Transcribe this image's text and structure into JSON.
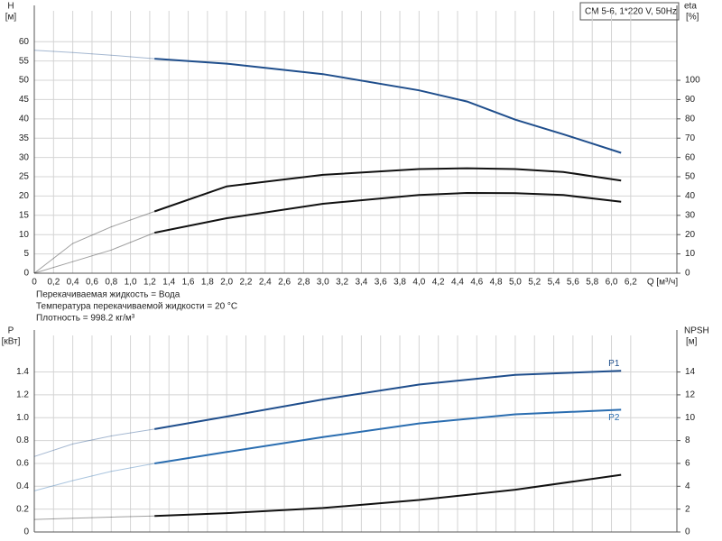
{
  "chart_data": [
    {
      "type": "line",
      "title": "CM 5-6, 1*220 V, 50Hz",
      "ylabel": "H",
      "yunit": "[м]",
      "y2label": "eta",
      "y2unit": "[%]",
      "xlabel": "Q [м³/ч]",
      "notes": [
        "Перекачиваемая жидкость = Вода",
        "Температура перекачиваемой жидкости = 20 °C",
        "Плотность = 998.2 кг/м³"
      ],
      "xlim": [
        0,
        6.68
      ],
      "xticks": [
        0,
        {
          "value": 0.2,
          "label": "0,2"
        },
        {
          "value": 0.4,
          "label": "0,4"
        },
        {
          "value": 0.6,
          "label": "0,6"
        },
        {
          "value": 0.8,
          "label": "0,8"
        },
        {
          "value": 1.0,
          "label": "1,0"
        },
        {
          "value": 1.2,
          "label": "1,2"
        },
        {
          "value": 1.4,
          "label": "1,4"
        },
        {
          "value": 1.6,
          "label": "1,6"
        },
        {
          "value": 1.8,
          "label": "1,8"
        },
        {
          "value": 2.0,
          "label": "2,0"
        },
        {
          "value": 2.2,
          "label": "2,2"
        },
        {
          "value": 2.4,
          "label": "2,4"
        },
        {
          "value": 2.6,
          "label": "2,6"
        },
        {
          "value": 2.8,
          "label": "2,8"
        },
        {
          "value": 3.0,
          "label": "3,0"
        },
        {
          "value": 3.2,
          "label": "3,2"
        },
        {
          "value": 3.4,
          "label": "3,4"
        },
        {
          "value": 3.6,
          "label": "3,6"
        },
        {
          "value": 3.8,
          "label": "3,8"
        },
        {
          "value": 4.0,
          "label": "4,0"
        },
        {
          "value": 4.2,
          "label": "4,2"
        },
        {
          "value": 4.4,
          "label": "4,4"
        },
        {
          "value": 4.6,
          "label": "4,6"
        },
        {
          "value": 4.8,
          "label": "4,8"
        },
        {
          "value": 5.0,
          "label": "5,0"
        },
        {
          "value": 5.2,
          "label": "5,2"
        },
        {
          "value": 5.4,
          "label": "5,4"
        },
        {
          "value": 5.6,
          "label": "5,6"
        },
        {
          "value": 5.8,
          "label": "5,8"
        },
        {
          "value": 6.0,
          "label": "6,0"
        },
        {
          "value": 6.2,
          "label": "6,2"
        }
      ],
      "ylim": [
        0,
        68
      ],
      "yticks": [
        0,
        5,
        10,
        15,
        20,
        25,
        30,
        35,
        40,
        45,
        50,
        55,
        60
      ],
      "y2lim": [
        0,
        136
      ],
      "y2ticks": [
        0,
        10,
        20,
        30,
        40,
        50,
        60,
        70,
        80,
        90,
        100
      ],
      "grid": true,
      "faded_below": 1.25,
      "x": [
        0,
        0.4,
        0.8,
        1.25,
        2,
        3,
        4,
        4.5,
        5,
        5.5,
        6.1
      ],
      "series": [
        {
          "color": "#1f4e8c",
          "values": [
            57.8,
            57.2,
            56.5,
            55.6,
            54.3,
            51.6,
            47.4,
            44.5,
            39.8,
            36,
            31.2
          ]
        },
        {
          "color": "#111111",
          "axis": "y2",
          "values": [
            0,
            15.4,
            24,
            32,
            45,
            51,
            54,
            54.4,
            54,
            52.5,
            48
          ]
        },
        {
          "color": "#111111",
          "axis": "y2",
          "values": [
            0,
            6,
            12,
            21,
            28.5,
            36,
            40.5,
            41.6,
            41.5,
            40.5,
            37
          ]
        }
      ]
    },
    {
      "type": "line",
      "ylabel": "P",
      "yunit": "[кВт]",
      "y2label": "NPSH",
      "y2unit": "[м]",
      "xlim": [
        0,
        6.68
      ],
      "xticks": [
        0,
        0.2,
        0.4,
        0.6,
        0.8,
        1.0,
        1.2,
        1.4,
        1.6,
        1.8,
        2.0,
        2.2,
        2.4,
        2.6,
        2.8,
        3.0,
        3.2,
        3.4,
        3.6,
        3.8,
        4.0,
        4.2,
        4.4,
        4.6,
        4.8,
        5.0,
        5.2,
        5.4,
        5.6,
        5.8,
        6.0,
        6.2
      ],
      "ylim": [
        0,
        1.72
      ],
      "yticks": [
        0,
        0.2,
        0.4,
        0.6,
        0.8,
        {
          "value": 1.0,
          "label": "1.0"
        },
        1.2,
        1.4
      ],
      "y2lim": [
        0,
        17.2
      ],
      "y2ticks": [
        0,
        2,
        4,
        6,
        8,
        10,
        12,
        14
      ],
      "grid": true,
      "faded_below": 1.25,
      "x": [
        0,
        0.4,
        0.8,
        1.25,
        2,
        3,
        4,
        5,
        6.1
      ],
      "series": [
        {
          "name": "P1",
          "color": "#1f4e8c",
          "values": [
            0.66,
            0.77,
            0.84,
            0.9,
            1.01,
            1.16,
            1.29,
            1.375,
            1.41
          ]
        },
        {
          "name": "P2",
          "color": "#2a6db0",
          "values": [
            0.36,
            0.45,
            0.53,
            0.6,
            0.7,
            0.83,
            0.95,
            1.03,
            1.07
          ]
        },
        {
          "color": "#111111",
          "axis": "y2",
          "values": [
            1.1,
            1.2,
            1.3,
            1.4,
            1.65,
            2.1,
            2.8,
            3.7,
            5.0
          ]
        }
      ]
    }
  ]
}
